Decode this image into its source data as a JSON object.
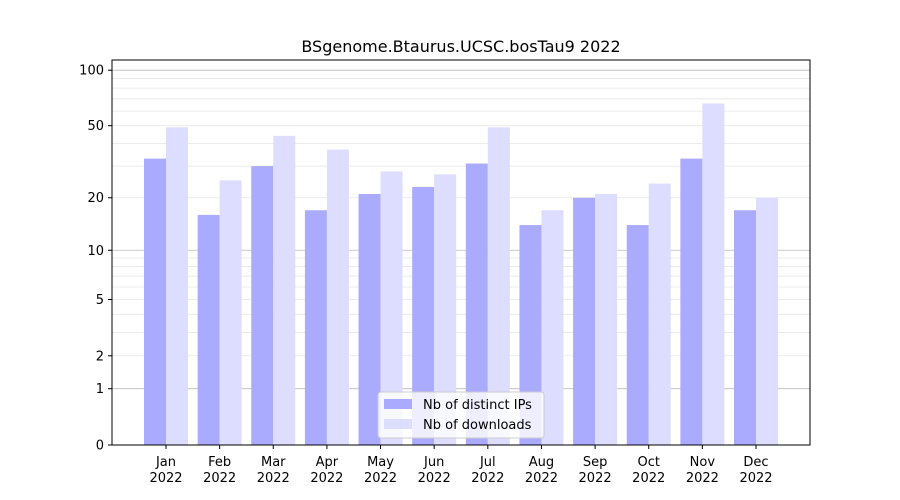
{
  "chart_data": {
    "type": "bar",
    "title": "BSgenome.Btaurus.UCSC.bosTau9 2022",
    "xlabel": "",
    "ylabel": "",
    "yscale": "log10(1+y)",
    "ylim": [
      0,
      110
    ],
    "yticks": [
      0,
      1,
      2,
      5,
      10,
      20,
      50,
      100
    ],
    "grid": true,
    "legend_position": "bottom-center",
    "categories": [
      "Jan\n2022",
      "Feb\n2022",
      "Mar\n2022",
      "Apr\n2022",
      "May\n2022",
      "Jun\n2022",
      "Jul\n2022",
      "Aug\n2022",
      "Sep\n2022",
      "Oct\n2022",
      "Nov\n2022",
      "Dec\n2022"
    ],
    "series": [
      {
        "name": "Nb of distinct IPs",
        "color": "#aaaaff",
        "values": [
          33,
          16,
          30,
          17,
          21,
          23,
          31,
          14,
          20,
          14,
          33,
          17
        ]
      },
      {
        "name": "Nb of downloads",
        "color": "#ddddff",
        "values": [
          49,
          25,
          44,
          37,
          28,
          27,
          49,
          17,
          21,
          24,
          66,
          20
        ]
      }
    ]
  }
}
